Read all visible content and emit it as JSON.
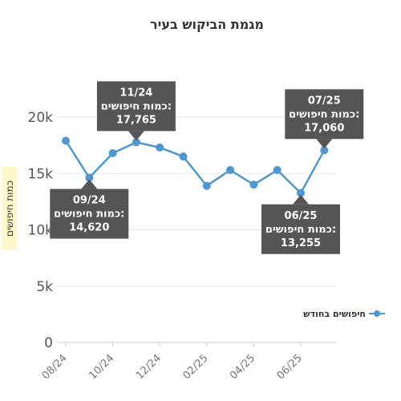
{
  "chart_data": {
    "type": "line",
    "title": "מגמת הביקוש בעיר",
    "ylabel": "כמות חיפושים",
    "xlabel": "",
    "ylim": [
      0,
      20000
    ],
    "yticks": [
      0,
      5000,
      10000,
      15000,
      20000
    ],
    "ytick_labels": [
      "0",
      "5k",
      "10k",
      "15k",
      "20k"
    ],
    "categories": [
      "08/24",
      "09/24",
      "10/24",
      "11/24",
      "12/24",
      "01/25",
      "02/25",
      "03/25",
      "04/25",
      "05/25",
      "06/25",
      "07/25"
    ],
    "xtick_labels": [
      "08/24",
      "10/24",
      "12/24",
      "02/25",
      "04/25",
      "06/25"
    ],
    "series": [
      {
        "name": "חיפושים בחודש",
        "color": "#4f97d1",
        "values": [
          17900,
          14620,
          16800,
          17765,
          17300,
          16500,
          13900,
          15300,
          14000,
          15300,
          13255,
          17060
        ]
      }
    ],
    "legend": {
      "placement": "right",
      "label": "חיפושים בחודש"
    },
    "annotations": [
      {
        "index": 3,
        "lines": [
          "11/24",
          "כמות חיפושים:",
          "17,765"
        ],
        "position": "above"
      },
      {
        "index": 1,
        "lines": [
          "09/24",
          "כמות חיפושים:",
          "14,620"
        ],
        "position": "below"
      },
      {
        "index": 11,
        "lines": [
          "07/25",
          "כמות חיפושים:",
          "17,060"
        ],
        "position": "above"
      },
      {
        "index": 10,
        "lines": [
          "06/25",
          "כמות חיפושים:",
          "13,255"
        ],
        "position": "below"
      }
    ],
    "grid": true
  }
}
